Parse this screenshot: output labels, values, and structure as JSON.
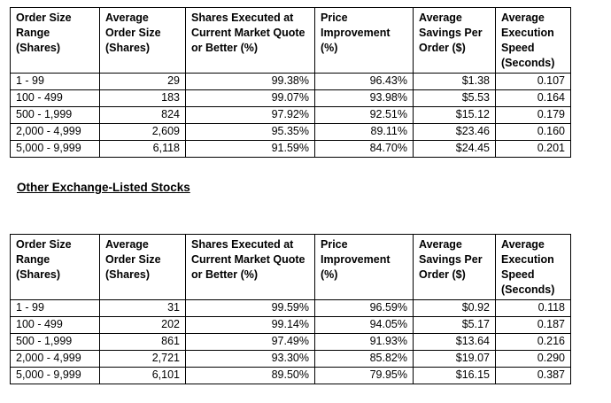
{
  "columns": [
    "Order Size Range (Shares)",
    "Average Order Size (Shares)",
    "Shares Executed at Current Market Quote or Better (%)",
    "Price Improvement (%)",
    "Average Savings Per Order ($)",
    "Average Execution Speed (Seconds)"
  ],
  "tables": [
    {
      "rows": [
        [
          "1 - 99",
          "29",
          "99.38%",
          "96.43%",
          "$1.38",
          "0.107"
        ],
        [
          "100 - 499",
          "183",
          "99.07%",
          "93.98%",
          "$5.53",
          "0.164"
        ],
        [
          "500 - 1,999",
          "824",
          "97.92%",
          "92.51%",
          "$15.12",
          "0.179"
        ],
        [
          "2,000 - 4,999",
          "2,609",
          "95.35%",
          "89.11%",
          "$23.46",
          "0.160"
        ],
        [
          "5,000 - 9,999",
          "6,118",
          "91.59%",
          "84.70%",
          "$24.45",
          "0.201"
        ]
      ]
    },
    {
      "title": "Other Exchange-Listed Stocks",
      "rows": [
        [
          "1 - 99",
          "31",
          "99.59%",
          "96.59%",
          "$0.92",
          "0.118"
        ],
        [
          "100 - 499",
          "202",
          "99.14%",
          "94.05%",
          "$5.17",
          "0.187"
        ],
        [
          "500 - 1,999",
          "861",
          "97.49%",
          "91.93%",
          "$13.64",
          "0.216"
        ],
        [
          "2,000 - 4,999",
          "2,721",
          "93.30%",
          "85.82%",
          "$19.07",
          "0.290"
        ],
        [
          "5,000 - 9,999",
          "6,101",
          "89.50%",
          "79.95%",
          "$16.15",
          "0.387"
        ]
      ]
    }
  ]
}
